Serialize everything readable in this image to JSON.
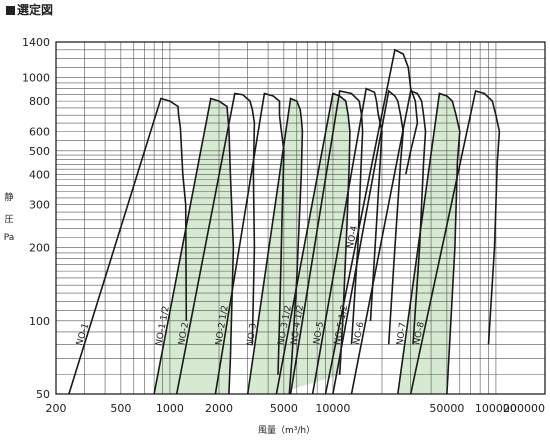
{
  "page": {
    "title": "選定図"
  },
  "chart_data": {
    "type": "area",
    "title": "",
    "xlabel": "風量（m³/h）",
    "ylabel": [
      "静",
      "圧",
      "Pa"
    ],
    "xscale": "log",
    "yscale": "log",
    "xlim": [
      200,
      200000
    ],
    "ylim": [
      50,
      1400
    ],
    "grid": true,
    "x_ticks": [
      200,
      500,
      1000,
      2000,
      5000,
      10000,
      50000,
      100000,
      200000
    ],
    "x_tick_labels": [
      "200",
      "500",
      "1000",
      "2000",
      "5000",
      "10000",
      "50000",
      "100000",
      "200000"
    ],
    "y_ticks": [
      50,
      100,
      200,
      300,
      400,
      500,
      600,
      800,
      1000,
      1400
    ],
    "y_tick_labels": [
      "50",
      "100",
      "200",
      "300",
      "400",
      "500",
      "600",
      "800",
      "1000",
      "1400"
    ],
    "colors": {
      "fill": "#d6ead2",
      "line": "#1a1a1a",
      "grid": "#555555"
    },
    "series": [
      {
        "name": "NO-1",
        "fill": false,
        "points": [
          [
            240,
            50
          ],
          [
            880,
            820
          ],
          [
            1000,
            800
          ],
          [
            1120,
            760
          ],
          [
            1130,
            700
          ],
          [
            1160,
            620
          ],
          [
            1200,
            400
          ],
          [
            1250,
            300
          ],
          [
            1260,
            100
          ]
        ]
      },
      {
        "name": "NO-1 1/2",
        "fill": true,
        "points": [
          [
            800,
            50
          ],
          [
            1780,
            820
          ],
          [
            2000,
            800
          ],
          [
            2240,
            760
          ],
          [
            2260,
            700
          ],
          [
            2300,
            620
          ],
          [
            2350,
            400
          ],
          [
            2450,
            200
          ],
          [
            2350,
            70
          ],
          [
            2300,
            50
          ]
        ]
      },
      {
        "name": "NO-2",
        "fill": false,
        "points": [
          [
            1100,
            50
          ],
          [
            2500,
            860
          ],
          [
            2800,
            850
          ],
          [
            3100,
            800
          ],
          [
            3200,
            740
          ],
          [
            3300,
            650
          ],
          [
            3250,
            400
          ],
          [
            3300,
            200
          ],
          [
            3200,
            80
          ]
        ]
      },
      {
        "name": "NO-2 1/2",
        "fill": false,
        "points": [
          [
            1900,
            50
          ],
          [
            3800,
            860
          ],
          [
            4300,
            840
          ],
          [
            4700,
            800
          ],
          [
            4700,
            700
          ],
          [
            4800,
            620
          ],
          [
            5000,
            500
          ],
          [
            4900,
            300
          ],
          [
            4700,
            100
          ],
          [
            4600,
            60
          ]
        ]
      },
      {
        "name": "NO-3",
        "fill": true,
        "points": [
          [
            3000,
            50
          ],
          [
            5500,
            820
          ],
          [
            6000,
            800
          ],
          [
            6300,
            740
          ],
          [
            6400,
            680
          ],
          [
            6500,
            600
          ],
          [
            6400,
            400
          ],
          [
            6000,
            150
          ],
          [
            5600,
            70
          ],
          [
            5400,
            50
          ]
        ]
      },
      {
        "name": "NO-3 1/2",
        "fill": true,
        "points": [
          [
            4500,
            50
          ],
          [
            10000,
            860
          ],
          [
            11000,
            840
          ],
          [
            12000,
            800
          ],
          [
            12400,
            700
          ],
          [
            12700,
            600
          ],
          [
            12600,
            450
          ],
          [
            12200,
            250
          ],
          [
            11500,
            100
          ],
          [
            11000,
            60
          ]
        ]
      },
      {
        "name": "NO-4 1/2",
        "fill": false,
        "points": [
          [
            5500,
            50
          ],
          [
            11000,
            880
          ],
          [
            13000,
            860
          ],
          [
            14500,
            800
          ],
          [
            15000,
            700
          ],
          [
            15200,
            600
          ],
          [
            14800,
            400
          ],
          [
            14200,
            200
          ],
          [
            13000,
            80
          ]
        ]
      },
      {
        "name": "NO-4",
        "fill": false,
        "points": [
          [
            9000,
            50
          ],
          [
            24000,
            1300
          ],
          [
            27000,
            1250
          ],
          [
            29000,
            1100
          ],
          [
            30000,
            900
          ],
          [
            32000,
            800
          ],
          [
            33000,
            650
          ],
          [
            30000,
            500
          ],
          [
            28000,
            400
          ]
        ]
      },
      {
        "name": "NO-5",
        "fill": false,
        "points": [
          [
            7500,
            50
          ],
          [
            16000,
            900
          ],
          [
            18000,
            870
          ],
          [
            18500,
            800
          ],
          [
            19000,
            700
          ],
          [
            20000,
            600
          ],
          [
            19500,
            450
          ],
          [
            18500,
            250
          ],
          [
            17000,
            100
          ]
        ]
      },
      {
        "name": "NO-5 1/2",
        "fill": false,
        "points": [
          [
            10000,
            50
          ],
          [
            22000,
            880
          ],
          [
            24000,
            840
          ],
          [
            25000,
            800
          ],
          [
            26000,
            700
          ],
          [
            27000,
            600
          ],
          [
            26000,
            450
          ],
          [
            24000,
            200
          ],
          [
            22000,
            80
          ]
        ]
      },
      {
        "name": "NO-6",
        "fill": false,
        "points": [
          [
            13000,
            50
          ],
          [
            30000,
            880
          ],
          [
            33000,
            860
          ],
          [
            35000,
            800
          ],
          [
            36000,
            700
          ],
          [
            37000,
            600
          ],
          [
            36000,
            450
          ],
          [
            34000,
            200
          ],
          [
            31000,
            80
          ]
        ]
      },
      {
        "name": "NO-7",
        "fill": true,
        "points": [
          [
            25000,
            50
          ],
          [
            45000,
            860
          ],
          [
            50000,
            840
          ],
          [
            54000,
            800
          ],
          [
            57000,
            700
          ],
          [
            60000,
            600
          ],
          [
            58000,
            450
          ],
          [
            56000,
            200
          ],
          [
            52000,
            80
          ],
          [
            50000,
            50
          ]
        ]
      },
      {
        "name": "NO-8",
        "fill": false,
        "points": [
          [
            30000,
            50
          ],
          [
            75000,
            880
          ],
          [
            85000,
            860
          ],
          [
            95000,
            800
          ],
          [
            100000,
            700
          ],
          [
            105000,
            600
          ],
          [
            102000,
            450
          ],
          [
            98000,
            200
          ],
          [
            90000,
            80
          ]
        ]
      }
    ]
  }
}
